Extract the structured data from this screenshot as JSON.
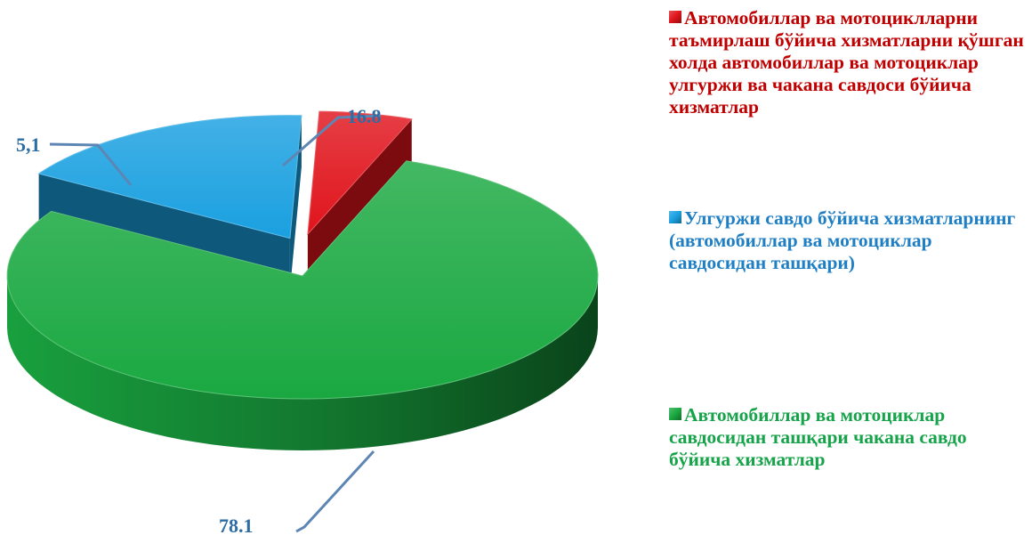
{
  "chart_data": {
    "type": "pie",
    "title": "",
    "style": "3d-exploded",
    "legend_position": "right",
    "slices": [
      {
        "name": "Автомобиллар ва мотоциклларни таъмирлаш бўйича хизматларни қўшган холда автомобиллар ва мотоциклар улгуржи ва чакана савдоси бўйича хизматлар",
        "value": 5.1,
        "label": "5,1",
        "color": "#e0141c",
        "text_color": "#c00000"
      },
      {
        "name": "Улгуржи савдо бўйича хизматларнинг (автомобиллар ва мотоциклар савдосидан ташқари)",
        "value": 16.8,
        "label": "16.8",
        "color": "#1aa0e0",
        "text_color": "#1f7fc4"
      },
      {
        "name": "Автомобиллар ва мотоциклар савдосидан ташқари чакана савдо бўйича хизматлар",
        "value": 78.1,
        "label": "78.1",
        "color": "#1aa841",
        "text_color": "#17a34a"
      }
    ],
    "label_color": "#2e6da4"
  }
}
